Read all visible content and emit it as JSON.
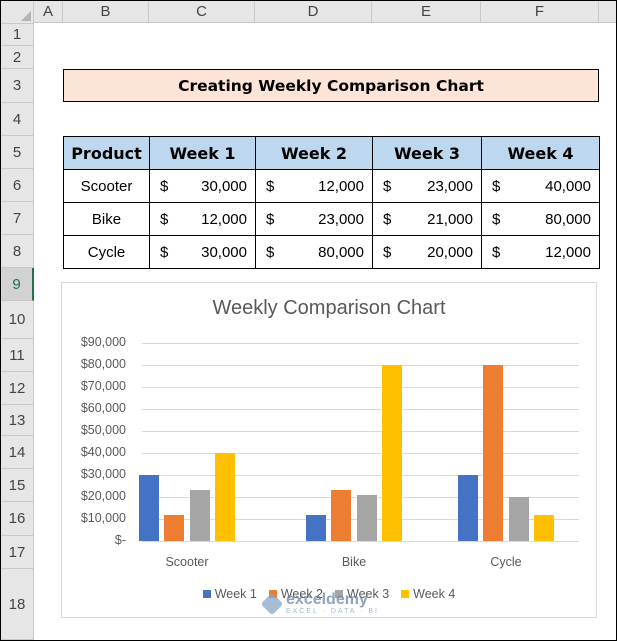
{
  "sheet": {
    "columns": [
      "A",
      "B",
      "C",
      "D",
      "E",
      "F"
    ],
    "rows": [
      "1",
      "2",
      "3",
      "4",
      "5",
      "6",
      "7",
      "8",
      "9",
      "10",
      "11",
      "12",
      "13",
      "14",
      "15",
      "16",
      "17",
      "18"
    ],
    "selected_row": "9"
  },
  "title_cell": "Creating Weekly Comparison Chart",
  "table": {
    "headers": [
      "Product",
      "Week 1",
      "Week 2",
      "Week 3",
      "Week 4"
    ],
    "currency": "$",
    "rows": [
      {
        "product": "Scooter",
        "values": [
          "30,000",
          "12,000",
          "23,000",
          "40,000"
        ]
      },
      {
        "product": "Bike",
        "values": [
          "12,000",
          "23,000",
          "21,000",
          "80,000"
        ]
      },
      {
        "product": "Cycle",
        "values": [
          "30,000",
          "80,000",
          "20,000",
          "12,000"
        ]
      }
    ]
  },
  "chart_data": {
    "type": "bar",
    "title": "Weekly Comparison Chart",
    "categories": [
      "Scooter",
      "Bike",
      "Cycle"
    ],
    "series": [
      {
        "name": "Week 1",
        "values": [
          30000,
          12000,
          30000
        ],
        "color": "#4472c4"
      },
      {
        "name": "Week 2",
        "values": [
          12000,
          23000,
          80000
        ],
        "color": "#ed7d31"
      },
      {
        "name": "Week 3",
        "values": [
          23000,
          21000,
          20000
        ],
        "color": "#a5a5a5"
      },
      {
        "name": "Week 4",
        "values": [
          40000,
          80000,
          12000
        ],
        "color": "#ffc000"
      }
    ],
    "y_ticks": [
      "$-",
      "$10,000",
      "$20,000",
      "$30,000",
      "$40,000",
      "$50,000",
      "$60,000",
      "$70,000",
      "$80,000",
      "$90,000"
    ],
    "ylim": [
      0,
      90000
    ],
    "grid": true,
    "legend_position": "bottom"
  },
  "watermark": {
    "main": "exceldemy",
    "sub": "EXCEL · DATA · BI"
  }
}
